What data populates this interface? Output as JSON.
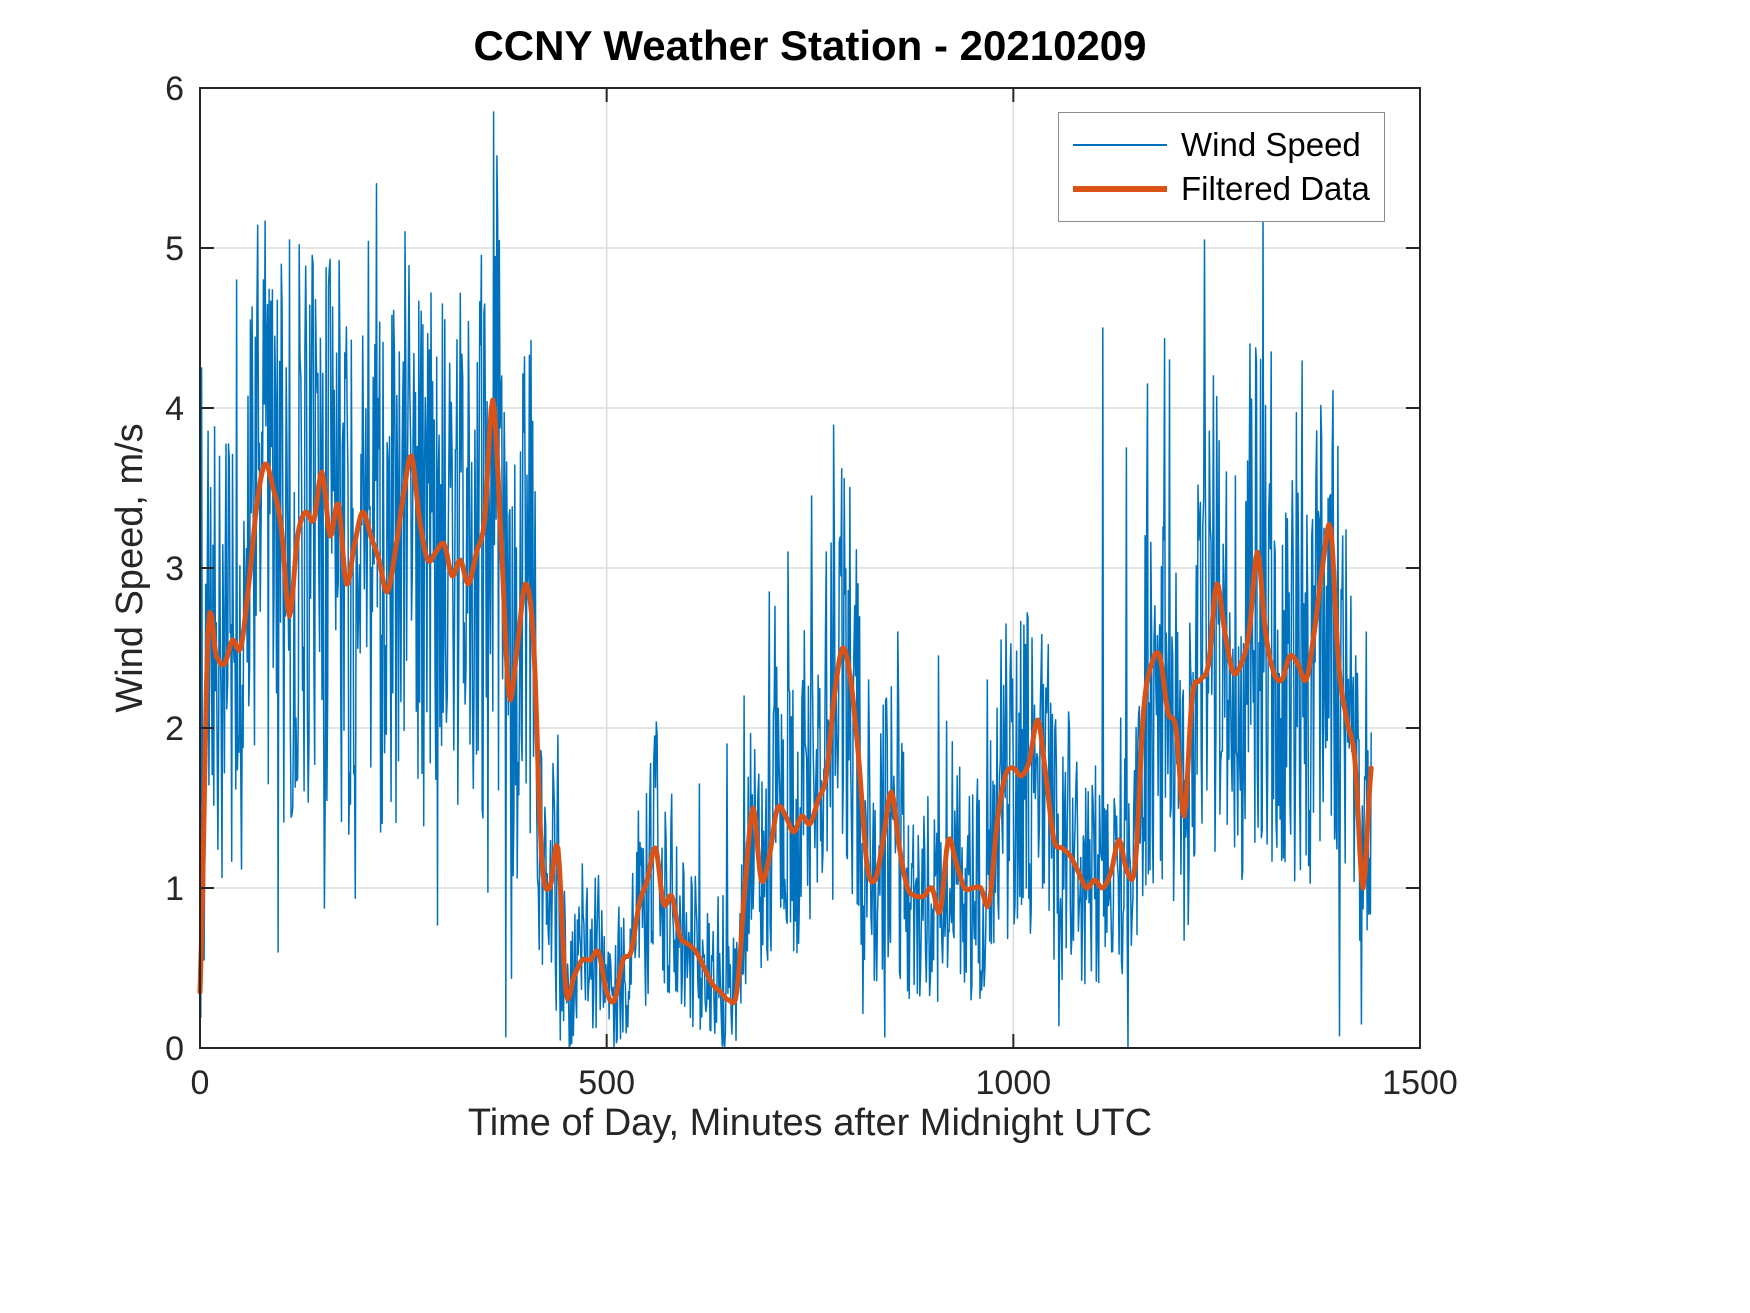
{
  "chart_data": {
    "type": "line",
    "title": "CCNY Weather Station - 20210209",
    "xlabel": "Time of Day, Minutes after Midnight UTC",
    "ylabel": "Wind Speed, m/s",
    "xlim": [
      0,
      1500
    ],
    "ylim": [
      0,
      6
    ],
    "xticks": [
      0,
      500,
      1000,
      1500
    ],
    "yticks": [
      0,
      1,
      2,
      3,
      4,
      5,
      6
    ],
    "grid": true,
    "grid_color": "#dcdcdc",
    "axes_color": "#262626",
    "background": "#ffffff",
    "legend": {
      "position": "northeast-inside",
      "entries": [
        "Wind Speed",
        "Filtered Data"
      ]
    },
    "series": [
      {
        "name": "Wind Speed",
        "color": "#0072BD",
        "line_width": 1.5,
        "derived": "filtered_plus_noise",
        "noise": {
          "seed": 20210209,
          "base_amplitude": 0.2,
          "slope": 0.5,
          "boost_probability": 0.05,
          "boost_factor": 1.7,
          "sample_step_minutes": 1
        },
        "spikes": [
          [
            2,
            4.25
          ],
          [
            5,
            0.55
          ],
          [
            45,
            4.8
          ],
          [
            62,
            4.55
          ],
          [
            78,
            4.8
          ],
          [
            96,
            0.6
          ],
          [
            110,
            5.05
          ],
          [
            139,
            4.9
          ],
          [
            172,
            4.4
          ],
          [
            200,
            4.45
          ],
          [
            222,
            1.35
          ],
          [
            245,
            4.35
          ],
          [
            298,
            4.65
          ],
          [
            332,
            1.9
          ],
          [
            350,
            4.65
          ],
          [
            371,
            4.2
          ],
          [
            443,
            0.05
          ],
          [
            455,
            0.02
          ],
          [
            470,
            1.15
          ],
          [
            520,
            0.1
          ],
          [
            559,
            1.95
          ],
          [
            614,
            1.65
          ],
          [
            648,
            1.9
          ],
          [
            669,
            2.2
          ],
          [
            700,
            2.85
          ],
          [
            723,
            3.1
          ],
          [
            752,
            3.45
          ],
          [
            770,
            3.1
          ],
          [
            788,
            2.95
          ],
          [
            822,
            2.3
          ],
          [
            858,
            2.6
          ],
          [
            908,
            2.45
          ],
          [
            968,
            2.3
          ],
          [
            985,
            2.55
          ],
          [
            1040,
            2.25
          ],
          [
            1068,
            2.1
          ],
          [
            1110,
            4.5
          ],
          [
            1139,
            3.75
          ],
          [
            1165,
            4.15
          ],
          [
            1192,
            4.3
          ],
          [
            1235,
            5.05
          ],
          [
            1262,
            3.6
          ],
          [
            1291,
            4.4
          ],
          [
            1317,
            4.35
          ],
          [
            1348,
            3.97
          ],
          [
            1376,
            3.3
          ],
          [
            1405,
            3.2
          ],
          [
            1428,
            0.15
          ],
          [
            1434,
            2.6
          ]
        ]
      },
      {
        "name": "Filtered Data",
        "color": "#D95319",
        "line_width": 5,
        "t_start": 0,
        "t_step": 10,
        "values": [
          0.35,
          2.6,
          2.45,
          2.4,
          2.55,
          2.5,
          2.9,
          3.4,
          3.65,
          3.5,
          3.25,
          2.7,
          3.2,
          3.35,
          3.3,
          3.6,
          3.2,
          3.4,
          2.9,
          3.15,
          3.35,
          3.2,
          3.05,
          2.85,
          3.1,
          3.45,
          3.7,
          3.3,
          3.05,
          3.1,
          3.15,
          2.95,
          3.05,
          2.9,
          3.1,
          3.3,
          4.05,
          3.2,
          2.2,
          2.5,
          2.9,
          2.55,
          1.2,
          1.0,
          1.25,
          0.35,
          0.45,
          0.55,
          0.55,
          0.6,
          0.35,
          0.3,
          0.55,
          0.6,
          0.9,
          1.05,
          1.25,
          0.9,
          0.95,
          0.7,
          0.65,
          0.6,
          0.5,
          0.4,
          0.35,
          0.3,
          0.35,
          1.0,
          1.5,
          1.05,
          1.2,
          1.5,
          1.45,
          1.35,
          1.45,
          1.4,
          1.55,
          1.7,
          2.2,
          2.5,
          2.3,
          1.8,
          1.15,
          1.05,
          1.3,
          1.6,
          1.25,
          1.0,
          0.95,
          0.95,
          1.0,
          0.85,
          1.3,
          1.15,
          1.0,
          1.0,
          1.0,
          0.9,
          1.4,
          1.7,
          1.75,
          1.7,
          1.8,
          2.05,
          1.7,
          1.3,
          1.25,
          1.2,
          1.1,
          1.0,
          1.05,
          1.0,
          1.1,
          1.3,
          1.1,
          1.15,
          2.1,
          2.4,
          2.45,
          2.1,
          2.0,
          1.45,
          2.2,
          2.3,
          2.4,
          2.9,
          2.6,
          2.35,
          2.4,
          2.6,
          3.1,
          2.6,
          2.35,
          2.3,
          2.45,
          2.4,
          2.3,
          2.6,
          3.0,
          3.25,
          2.4,
          2.05,
          1.8,
          1.0,
          1.75
        ]
      }
    ]
  }
}
